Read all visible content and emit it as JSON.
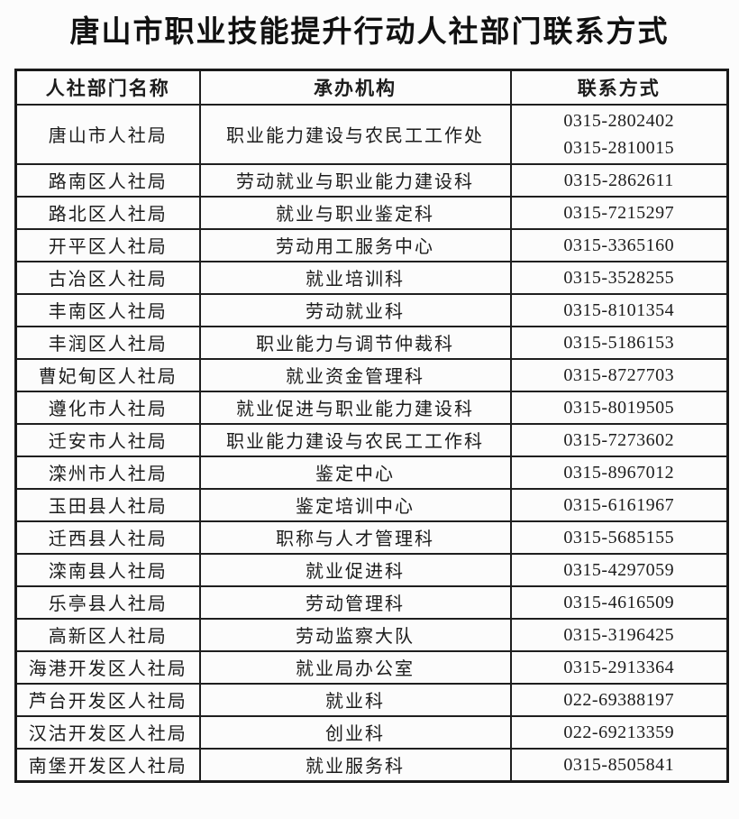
{
  "title": "唐山市职业技能提升行动人社部门联系方式",
  "table": {
    "headers": [
      "人社部门名称",
      "承办机构",
      "联系方式"
    ],
    "rows": [
      {
        "dept": "唐山市人社局",
        "agency": "职业能力建设与农民工工作处",
        "phones": [
          "0315-2802402",
          "0315-2810015"
        ]
      },
      {
        "dept": "路南区人社局",
        "agency": "劳动就业与职业能力建设科",
        "phones": [
          "0315-2862611"
        ]
      },
      {
        "dept": "路北区人社局",
        "agency": "就业与职业鉴定科",
        "phones": [
          "0315-7215297"
        ]
      },
      {
        "dept": "开平区人社局",
        "agency": "劳动用工服务中心",
        "phones": [
          "0315-3365160"
        ]
      },
      {
        "dept": "古冶区人社局",
        "agency": "就业培训科",
        "phones": [
          "0315-3528255"
        ]
      },
      {
        "dept": "丰南区人社局",
        "agency": "劳动就业科",
        "phones": [
          "0315-8101354"
        ]
      },
      {
        "dept": "丰润区人社局",
        "agency": "职业能力与调节仲裁科",
        "phones": [
          "0315-5186153"
        ]
      },
      {
        "dept": "曹妃甸区人社局",
        "agency": "就业资金管理科",
        "phones": [
          "0315-8727703"
        ]
      },
      {
        "dept": "遵化市人社局",
        "agency": "就业促进与职业能力建设科",
        "phones": [
          "0315-8019505"
        ]
      },
      {
        "dept": "迁安市人社局",
        "agency": "职业能力建设与农民工工作科",
        "phones": [
          "0315-7273602"
        ]
      },
      {
        "dept": "滦州市人社局",
        "agency": "鉴定中心",
        "phones": [
          "0315-8967012"
        ]
      },
      {
        "dept": "玉田县人社局",
        "agency": "鉴定培训中心",
        "phones": [
          "0315-6161967"
        ]
      },
      {
        "dept": "迁西县人社局",
        "agency": "职称与人才管理科",
        "phones": [
          "0315-5685155"
        ]
      },
      {
        "dept": "滦南县人社局",
        "agency": "就业促进科",
        "phones": [
          "0315-4297059"
        ]
      },
      {
        "dept": "乐亭县人社局",
        "agency": "劳动管理科",
        "phones": [
          "0315-4616509"
        ]
      },
      {
        "dept": "高新区人社局",
        "agency": "劳动监察大队",
        "phones": [
          "0315-3196425"
        ]
      },
      {
        "dept": "海港开发区人社局",
        "agency": "就业局办公室",
        "phones": [
          "0315-2913364"
        ]
      },
      {
        "dept": "芦台开发区人社局",
        "agency": "就业科",
        "phones": [
          "022-69388197"
        ]
      },
      {
        "dept": "汉沽开发区人社局",
        "agency": "创业科",
        "phones": [
          "022-69213359"
        ]
      },
      {
        "dept": "南堡开发区人社局",
        "agency": "就业服务科",
        "phones": [
          "0315-8505841"
        ]
      }
    ]
  },
  "colors": {
    "page_background": "#fcfcfc",
    "border": "#1a1a1a",
    "text": "#1c1c1c"
  }
}
